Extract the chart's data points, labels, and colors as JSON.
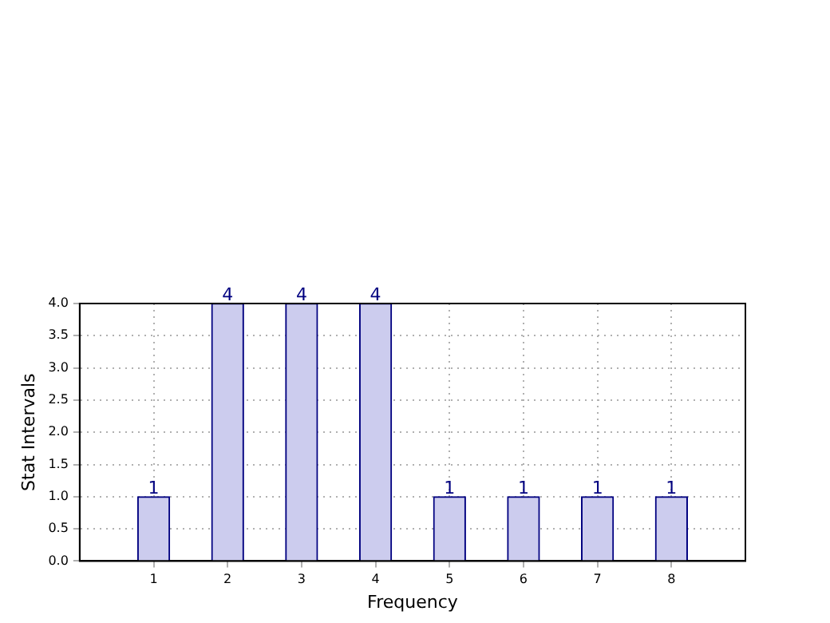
{
  "chart_data": {
    "type": "bar",
    "xlabel": "Frequency",
    "ylabel": "Stat Intervals",
    "x": [
      1,
      2,
      3,
      4,
      5,
      6,
      7,
      8
    ],
    "values": [
      1,
      4,
      4,
      4,
      1,
      1,
      1,
      1
    ],
    "color": "#ccccee",
    "xlim": [
      0,
      9
    ],
    "xticks": [
      1,
      2,
      3,
      4,
      5,
      6,
      7,
      8
    ],
    "ylim": [
      0,
      4
    ],
    "yticks": [
      {
        "value": 0,
        "label": "0.0"
      },
      0.5,
      {
        "value": 1,
        "label": "1.0"
      },
      1.5,
      {
        "value": 2,
        "label": "2.0"
      },
      2.5,
      {
        "value": 3,
        "label": "3.0"
      },
      3.5,
      {
        "value": 4,
        "label": "4.0"
      }
    ],
    "grid": true,
    "data_labels": true,
    "legend": false
  }
}
